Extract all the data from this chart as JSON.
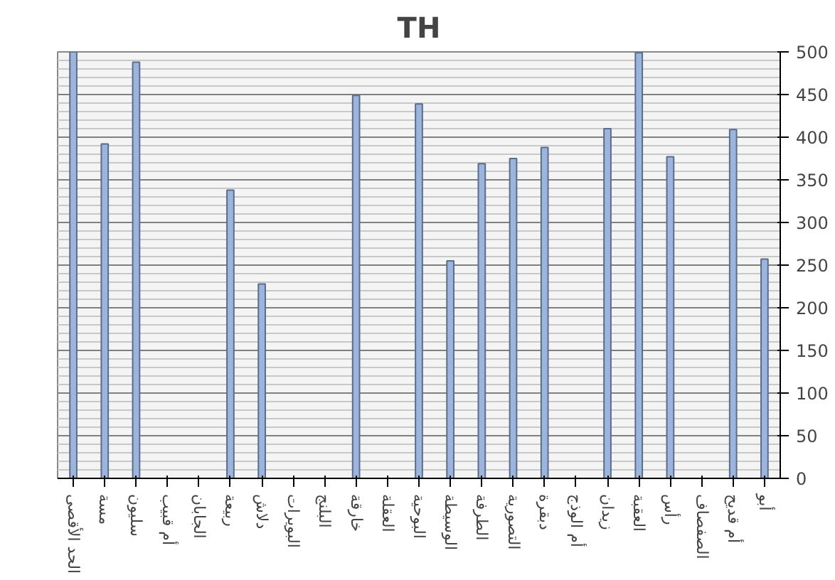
{
  "chart_data": {
    "type": "bar",
    "title": "TH",
    "categories": [
      "الحد الأقصى",
      "مسة",
      "سليون",
      "أم قبيب",
      "الجابان",
      "ربيعة",
      "دلاش",
      "البويرات",
      "البلنج",
      "خارقة",
      "العقلة",
      "البوحية",
      "الوسيطة",
      "الطرفة",
      "التصورية",
      "دبقرة",
      "أم الوذج",
      "زيدان",
      "العقبة",
      "رأس",
      "الصفصاف",
      "أم قديح",
      "أبو"
    ],
    "values": [
      500,
      392,
      488,
      null,
      null,
      338,
      228,
      null,
      null,
      449,
      null,
      439,
      255,
      369,
      375,
      388,
      null,
      410,
      499,
      377,
      null,
      409,
      257
    ],
    "color": "#9db5dd",
    "ylim": [
      0,
      500
    ],
    "yticks": [
      0,
      50,
      100,
      150,
      200,
      250,
      300,
      350,
      400,
      450,
      500
    ],
    "grid": "y"
  }
}
